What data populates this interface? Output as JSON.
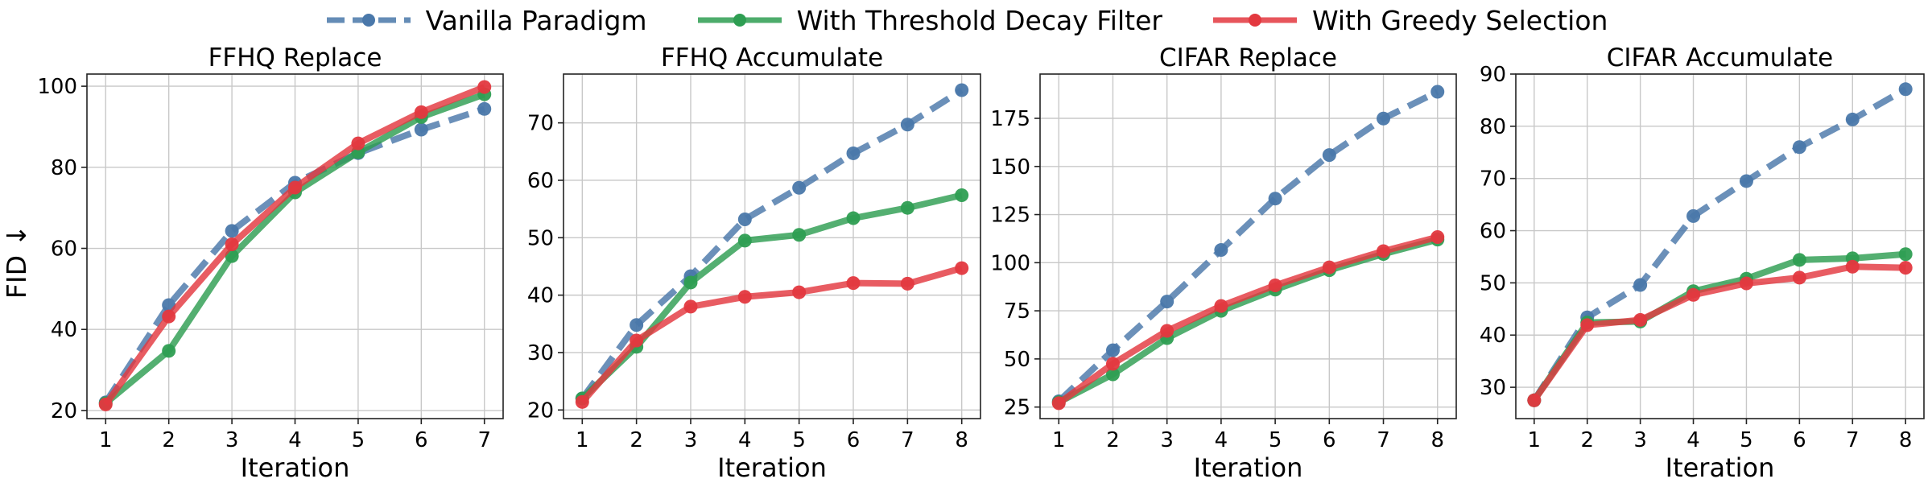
{
  "legend": [
    {
      "label": "Vanilla Paradigm",
      "color": "#4a78aa",
      "dashed": true
    },
    {
      "label": "With Threshold Decay Filter",
      "color": "#2e9e52",
      "dashed": false
    },
    {
      "label": "With Greedy Selection",
      "color": "#e3383f",
      "dashed": false
    }
  ],
  "shared_ylabel": "FID ↓",
  "chart_data": [
    {
      "type": "line",
      "title": "FFHQ Replace",
      "xlabel": "Iteration",
      "x": [
        1,
        2,
        3,
        4,
        5,
        6,
        7
      ],
      "ylim": [
        18,
        103
      ],
      "yticks": [
        20,
        40,
        60,
        80,
        100
      ],
      "grid": true,
      "series": [
        {
          "name": "Vanilla Paradigm",
          "values": [
            22.0,
            46.0,
            64.3,
            76.2,
            83.5,
            89.3,
            94.4
          ]
        },
        {
          "name": "With Threshold Decay Filter",
          "values": [
            21.8,
            34.7,
            58.1,
            73.8,
            83.7,
            92.4,
            98.0
          ]
        },
        {
          "name": "With Greedy Selection",
          "values": [
            21.5,
            43.2,
            61.0,
            75.0,
            85.9,
            93.6,
            99.8
          ]
        }
      ]
    },
    {
      "type": "line",
      "title": "FFHQ Accumulate",
      "xlabel": "Iteration",
      "x": [
        1,
        2,
        3,
        4,
        5,
        6,
        7,
        8
      ],
      "ylim": [
        18.5,
        78.5
      ],
      "yticks": [
        20,
        30,
        40,
        50,
        60,
        70
      ],
      "grid": true,
      "series": [
        {
          "name": "Vanilla Paradigm",
          "values": [
            22.0,
            34.8,
            43.3,
            53.2,
            58.7,
            64.7,
            69.7,
            75.7
          ]
        },
        {
          "name": "With Threshold Decay Filter",
          "values": [
            22.0,
            31.0,
            42.2,
            49.5,
            50.5,
            53.4,
            55.2,
            57.4
          ]
        },
        {
          "name": "With Greedy Selection",
          "values": [
            21.4,
            32.1,
            38.0,
            39.7,
            40.5,
            42.1,
            42.0,
            44.7
          ]
        }
      ]
    },
    {
      "type": "line",
      "title": "CIFAR Replace",
      "xlabel": "Iteration",
      "x": [
        1,
        2,
        3,
        4,
        5,
        6,
        7,
        8
      ],
      "ylim": [
        19,
        198
      ],
      "yticks": [
        25,
        50,
        75,
        100,
        125,
        150,
        175
      ],
      "grid": true,
      "series": [
        {
          "name": "Vanilla Paradigm",
          "values": [
            28.0,
            54.5,
            79.8,
            106.6,
            133.3,
            155.9,
            174.9,
            188.8
          ]
        },
        {
          "name": "With Threshold Decay Filter",
          "values": [
            27.5,
            42.0,
            60.8,
            75.0,
            86.0,
            96.1,
            104.5,
            112.0
          ]
        },
        {
          "name": "With Greedy Selection",
          "values": [
            27.0,
            47.5,
            64.6,
            77.5,
            88.2,
            97.6,
            106.0,
            113.3
          ]
        }
      ]
    },
    {
      "type": "line",
      "title": "CIFAR Accumulate",
      "xlabel": "Iteration",
      "x": [
        1,
        2,
        3,
        4,
        5,
        6,
        7,
        8
      ],
      "ylim": [
        24,
        90
      ],
      "yticks": [
        30,
        40,
        50,
        60,
        70,
        80,
        90
      ],
      "grid": true,
      "series": [
        {
          "name": "Vanilla Paradigm",
          "values": [
            27.5,
            43.4,
            49.6,
            62.8,
            69.5,
            76.0,
            81.3,
            87.1
          ]
        },
        {
          "name": "With Threshold Decay Filter",
          "values": [
            27.5,
            42.4,
            42.6,
            48.4,
            50.8,
            54.4,
            54.7,
            55.5
          ]
        },
        {
          "name": "With Greedy Selection",
          "values": [
            27.5,
            41.9,
            42.9,
            47.7,
            49.9,
            51.0,
            53.1,
            52.9
          ]
        }
      ]
    }
  ]
}
